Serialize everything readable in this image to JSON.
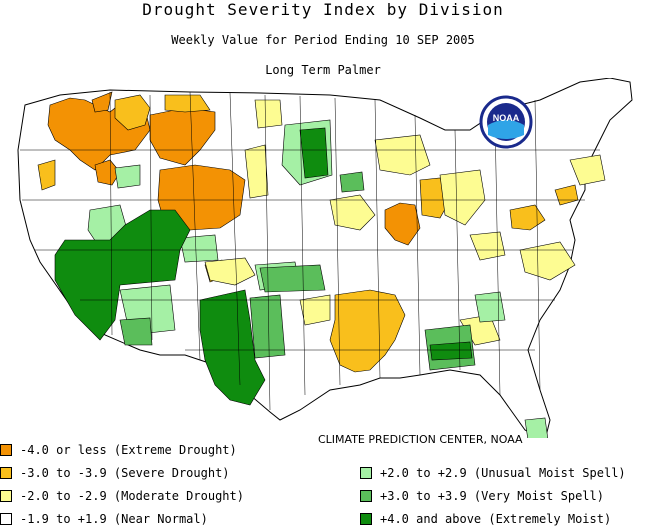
{
  "header": {
    "title": "Drought Severity Index by Division",
    "subtitle": "Weekly Value for Period Ending 10 SEP 2005",
    "index_name": "Long Term Palmer"
  },
  "credit": "CLIMATE PREDICTION CENTER, NOAA",
  "logo": {
    "text": "NOAA",
    "icon": "noaa-logo"
  },
  "legend": [
    {
      "label": "-4.0 or less (Extreme Drought)",
      "color": "#f39204"
    },
    {
      "label": "-3.0 to -3.9 (Severe Drought)",
      "color": "#f9bf1c"
    },
    {
      "label": "-2.0 to -2.9 (Moderate Drought)",
      "color": "#fdfc92"
    },
    {
      "label": "-1.9 to +1.9 (Near Normal)",
      "color": "#ffffff"
    },
    {
      "label": "+2.0 to +2.9 (Unusual Moist Spell)",
      "color": "#a5f0a5"
    },
    {
      "label": "+3.0 to +3.9 (Very Moist Spell)",
      "color": "#5bbe5b"
    },
    {
      "label": "+4.0 and above (Extremely Moist)",
      "color": "#0f8c0f"
    }
  ]
}
